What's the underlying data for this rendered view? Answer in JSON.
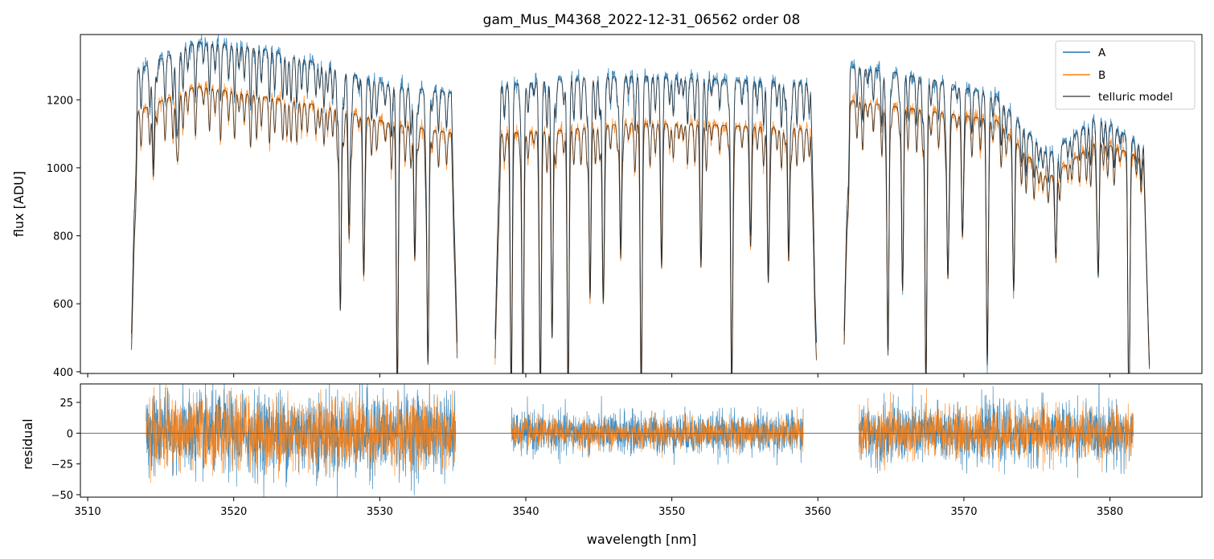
{
  "chart_data": {
    "type": "line",
    "title": "gam_Mus_M4368_2022-12-31_06562  order 08",
    "xlabel": "wavelength [nm]",
    "xlim": [
      3509.5,
      3586.3
    ],
    "x_ticks": [
      3510,
      3520,
      3530,
      3540,
      3550,
      3560,
      3570,
      3580
    ],
    "x_tick_labels": [
      "3510",
      "3520",
      "3530",
      "3540",
      "3550",
      "3560",
      "3570",
      "3580"
    ],
    "legend_position": "top-right",
    "colors": {
      "A": "#1f77b4",
      "B": "#ff7f0e",
      "telluric": "#222222",
      "zero_line": "#808080"
    },
    "top_panel": {
      "ylabel": "flux [ADU]",
      "ylim": [
        395,
        1392
      ],
      "y_ticks": [
        400,
        600,
        800,
        1000,
        1200
      ],
      "y_tick_labels": [
        "400",
        "600",
        "800",
        "1000",
        "1200"
      ],
      "segments": [
        {
          "x": [
            3513.0,
            3535.3
          ],
          "continuum_A": [
            1280,
            1370,
            1350,
            1300,
            1240,
            1220
          ],
          "continuum_B": [
            1160,
            1240,
            1210,
            1180,
            1130,
            1100
          ]
        },
        {
          "x": [
            3537.9,
            3559.9
          ],
          "continuum_A": [
            1240,
            1260,
            1270,
            1265,
            1255,
            1250
          ],
          "continuum_B": [
            1100,
            1110,
            1130,
            1130,
            1120,
            1115
          ]
        },
        {
          "x": [
            3561.8,
            3582.7
          ],
          "continuum_A": [
            1300,
            1280,
            1250,
            1210,
            1040,
            1150,
            1050
          ],
          "continuum_B": [
            1200,
            1180,
            1160,
            1140,
            970,
            1080,
            1020
          ]
        }
      ],
      "absorption_lines": [
        {
          "x": 3514.5,
          "depth_A": 0.24,
          "depth_B": 0.18
        },
        {
          "x": 3516.1,
          "depth_A": 0.16,
          "depth_B": 0.13
        },
        {
          "x": 3527.3,
          "depth_A": 0.55,
          "depth_B": 0.5
        },
        {
          "x": 3527.9,
          "depth_A": 0.35,
          "depth_B": 0.32
        },
        {
          "x": 3528.9,
          "depth_A": 0.45,
          "depth_B": 0.4
        },
        {
          "x": 3531.2,
          "depth_A": 0.7,
          "depth_B": 0.7
        },
        {
          "x": 3532.4,
          "depth_A": 0.4,
          "depth_B": 0.35
        },
        {
          "x": 3533.3,
          "depth_A": 0.65,
          "depth_B": 0.62
        },
        {
          "x": 3539.0,
          "depth_A": 0.7,
          "depth_B": 0.7
        },
        {
          "x": 3539.8,
          "depth_A": 0.7,
          "depth_B": 0.7
        },
        {
          "x": 3541.0,
          "depth_A": 0.7,
          "depth_B": 0.7
        },
        {
          "x": 3541.8,
          "depth_A": 0.6,
          "depth_B": 0.55
        },
        {
          "x": 3542.9,
          "depth_A": 0.7,
          "depth_B": 0.7
        },
        {
          "x": 3544.4,
          "depth_A": 0.5,
          "depth_B": 0.45
        },
        {
          "x": 3545.3,
          "depth_A": 0.5,
          "depth_B": 0.45
        },
        {
          "x": 3546.5,
          "depth_A": 0.4,
          "depth_B": 0.35
        },
        {
          "x": 3547.9,
          "depth_A": 0.7,
          "depth_B": 0.7
        },
        {
          "x": 3549.3,
          "depth_A": 0.4,
          "depth_B": 0.35
        },
        {
          "x": 3552.0,
          "depth_A": 0.4,
          "depth_B": 0.35
        },
        {
          "x": 3554.1,
          "depth_A": 0.7,
          "depth_B": 0.7
        },
        {
          "x": 3555.4,
          "depth_A": 0.35,
          "depth_B": 0.3
        },
        {
          "x": 3556.6,
          "depth_A": 0.45,
          "depth_B": 0.4
        },
        {
          "x": 3558.0,
          "depth_A": 0.4,
          "depth_B": 0.35
        },
        {
          "x": 3564.8,
          "depth_A": 0.65,
          "depth_B": 0.6
        },
        {
          "x": 3565.8,
          "depth_A": 0.5,
          "depth_B": 0.45
        },
        {
          "x": 3567.4,
          "depth_A": 0.7,
          "depth_B": 0.7
        },
        {
          "x": 3568.9,
          "depth_A": 0.45,
          "depth_B": 0.4
        },
        {
          "x": 3569.9,
          "depth_A": 0.35,
          "depth_B": 0.3
        },
        {
          "x": 3571.6,
          "depth_A": 0.65,
          "depth_B": 0.6
        },
        {
          "x": 3573.4,
          "depth_A": 0.4,
          "depth_B": 0.35
        },
        {
          "x": 3576.3,
          "depth_A": 0.3,
          "depth_B": 0.25
        },
        {
          "x": 3579.2,
          "depth_A": 0.4,
          "depth_B": 0.35
        },
        {
          "x": 3581.3,
          "depth_A": 0.7,
          "depth_B": 0.7
        }
      ]
    },
    "bottom_panel": {
      "ylabel": "residual",
      "ylim": [
        -52,
        40
      ],
      "y_ticks": [
        25,
        0,
        -25,
        -50
      ],
      "y_tick_labels": [
        "25",
        "0",
        "−25",
        "−50"
      ],
      "segments_x": [
        [
          3514.0,
          3535.2
        ],
        [
          3539.0,
          3559.0
        ],
        [
          3562.8,
          3581.6
        ]
      ],
      "noise_amplitude": {
        "A": [
          28,
          14,
          20
        ],
        "B": [
          24,
          10,
          17
        ]
      }
    },
    "series": [
      {
        "name": "A"
      },
      {
        "name": "B"
      },
      {
        "name": "telluric model"
      }
    ]
  }
}
